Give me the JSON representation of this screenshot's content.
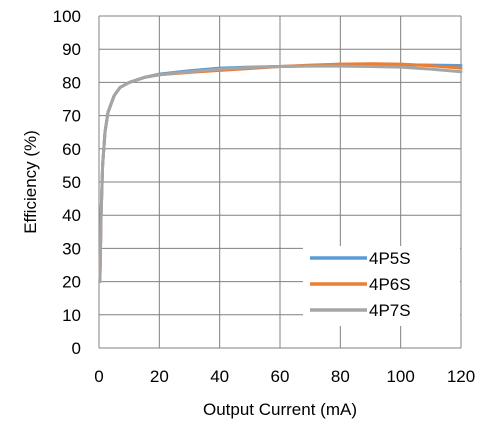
{
  "chart_data": {
    "type": "line",
    "xlabel": "Output Current (mA)",
    "ylabel": "Efficiency (%)",
    "xlim": [
      0,
      120
    ],
    "ylim": [
      0,
      100
    ],
    "x_ticks": [
      0,
      20,
      40,
      60,
      80,
      100,
      120
    ],
    "y_ticks": [
      0,
      10,
      20,
      30,
      40,
      50,
      60,
      70,
      80,
      90,
      100
    ],
    "grid": true,
    "legend_position": "bottom-right",
    "series": [
      {
        "name": "4P5S",
        "color": "#5B9BD5",
        "x": [
          0.3,
          0.7,
          1.2,
          2,
          3,
          5,
          7,
          10,
          15,
          20,
          30,
          40,
          50,
          60,
          70,
          80,
          90,
          100,
          110,
          120
        ],
        "y": [
          20,
          40,
          55,
          65,
          71,
          76,
          78.5,
          80,
          81.5,
          82.5,
          83.5,
          84.3,
          84.6,
          84.8,
          85,
          85.2,
          85.3,
          85.3,
          85.2,
          85.1
        ]
      },
      {
        "name": "4P6S",
        "color": "#ED7D31",
        "x": [
          0.3,
          0.7,
          1.2,
          2,
          3,
          5,
          7,
          10,
          15,
          20,
          30,
          40,
          50,
          60,
          70,
          80,
          90,
          100,
          110,
          120
        ],
        "y": [
          20,
          40,
          55,
          65,
          71,
          76,
          78.5,
          80,
          81.5,
          82.3,
          83,
          83.6,
          84.2,
          84.8,
          85.2,
          85.5,
          85.6,
          85.5,
          85,
          84.3
        ]
      },
      {
        "name": "4P7S",
        "color": "#A5A5A5",
        "x": [
          0.3,
          0.7,
          1.2,
          2,
          3,
          5,
          7,
          10,
          15,
          20,
          30,
          40,
          50,
          60,
          70,
          80,
          90,
          100,
          110,
          120
        ],
        "y": [
          20,
          40,
          55,
          65,
          71,
          76,
          78.5,
          80,
          81.5,
          82.3,
          83.2,
          84,
          84.5,
          84.8,
          84.9,
          84.9,
          84.8,
          84.6,
          84,
          83.2
        ]
      }
    ]
  }
}
